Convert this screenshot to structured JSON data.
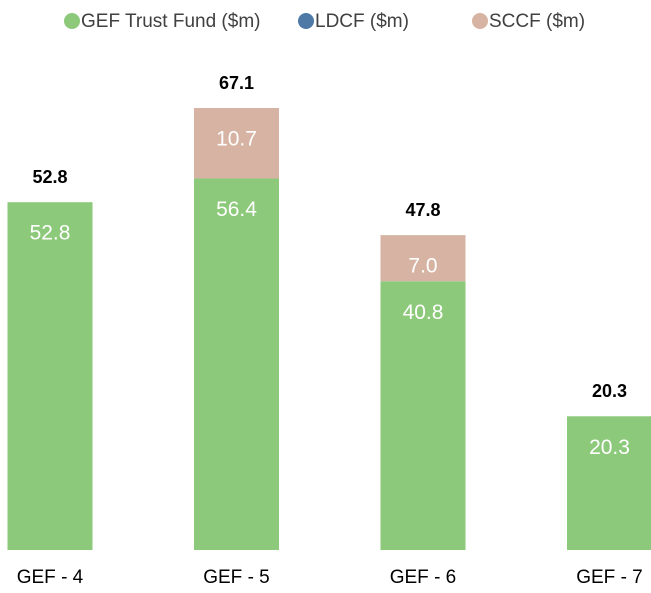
{
  "chart_data": {
    "type": "stacked_bar",
    "categories": [
      "GEF - 4",
      "GEF - 5",
      "GEF - 6",
      "GEF - 7"
    ],
    "series": [
      {
        "name": "GEF Trust Fund ($m)",
        "color": "#8cc97a",
        "values": [
          52.8,
          56.4,
          40.8,
          20.3
        ]
      },
      {
        "name": "LDCF ($m)",
        "color": "#4e79a7",
        "values": [
          null,
          null,
          null,
          null
        ]
      },
      {
        "name": "SCCF ($m)",
        "color": "#d6b3a3",
        "values": [
          null,
          10.7,
          7.0,
          null
        ],
        "value_labels": [
          null,
          "10.7",
          "7.0",
          null
        ]
      }
    ],
    "totals": [
      52.8,
      67.1,
      47.8,
      20.3
    ],
    "legend": "top"
  }
}
